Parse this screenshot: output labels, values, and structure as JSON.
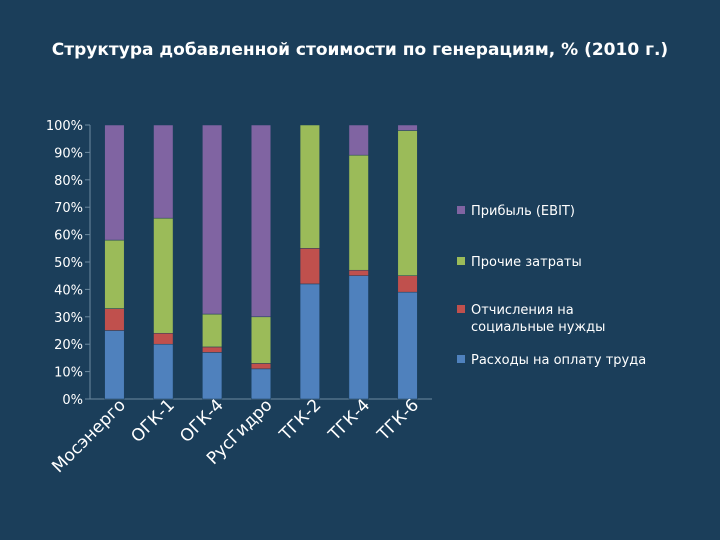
{
  "title": "Структура добавленной стоимости по генерациям, % (2010 г.)",
  "chart_data": {
    "type": "bar",
    "stacked": true,
    "percent": true,
    "categories": [
      "Мосэнерго",
      "ОГК-1",
      "ОГК-4",
      "РусГидро",
      "ТГК-2",
      "ТГК-4",
      "ТГК-6"
    ],
    "series": [
      {
        "name": "Расходы на оплату труда",
        "color": "#4f81bd",
        "values": [
          25,
          20,
          17,
          11,
          42,
          45,
          39
        ]
      },
      {
        "name": "Отчисления на социальные нужды",
        "color": "#c0504d",
        "values": [
          8,
          4,
          2,
          2,
          13,
          2,
          6
        ]
      },
      {
        "name": "Прочие затраты",
        "color": "#9bbb59",
        "values": [
          25,
          42,
          12,
          17,
          45,
          42,
          53
        ]
      },
      {
        "name": "Прибыль (EBIT)",
        "color": "#8064a2",
        "values": [
          42,
          34,
          69,
          70,
          0,
          11,
          2
        ]
      }
    ],
    "y_ticks": [
      "0%",
      "10%",
      "20%",
      "30%",
      "40%",
      "50%",
      "60%",
      "70%",
      "80%",
      "90%",
      "100%"
    ],
    "ylim": [
      0,
      100
    ],
    "legend_items": [
      {
        "label": "Прибыль (EBIT)",
        "color": "#8064a2"
      },
      {
        "label": "Прочие затраты",
        "color": "#9bbb59"
      },
      {
        "label": "Отчисления на\nсоциальные нужды",
        "color": "#c0504d"
      },
      {
        "label": "Расходы на оплату труда",
        "color": "#4f81bd"
      }
    ],
    "legend_position": "right",
    "grid": false
  }
}
